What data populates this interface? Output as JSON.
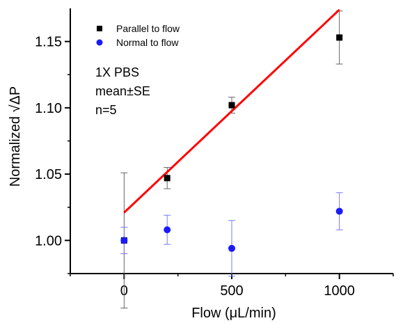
{
  "chart_data": {
    "type": "scatter",
    "xlabel": "Flow (μL/min)",
    "ylabel": "Normalized √ΔP",
    "xlim": [
      -250,
      1250
    ],
    "ylim": [
      0.975,
      1.175
    ],
    "x_ticks": [
      0,
      500,
      1000
    ],
    "x_tick_labels": [
      "0",
      "500",
      "1000"
    ],
    "y_ticks": [
      1.0,
      1.05,
      1.1,
      1.15
    ],
    "y_tick_labels": [
      "1.00",
      "1.05",
      "1.10",
      "1.15"
    ],
    "grid": false,
    "legend_position": "top-left",
    "series": [
      {
        "name": "Parallel to flow",
        "marker": "square",
        "color": "#000000",
        "x": [
          0,
          200,
          500,
          1000
        ],
        "y": [
          1.0,
          1.047,
          1.102,
          1.153
        ],
        "error": [
          0.051,
          0.008,
          0.006,
          0.02
        ]
      },
      {
        "name": "Normal to flow",
        "marker": "circle",
        "color": "#1a1aff",
        "x": [
          0,
          200,
          500,
          1000
        ],
        "y": [
          1.0,
          1.008,
          0.994,
          1.022
        ],
        "error": [
          0.01,
          0.011,
          0.021,
          0.014
        ]
      }
    ],
    "fit_line": {
      "color": "#ff0000",
      "x": [
        0,
        1000
      ],
      "y": [
        1.021,
        1.174
      ]
    },
    "annotations": [
      "1X PBS",
      "mean±SE",
      "n=5"
    ]
  }
}
